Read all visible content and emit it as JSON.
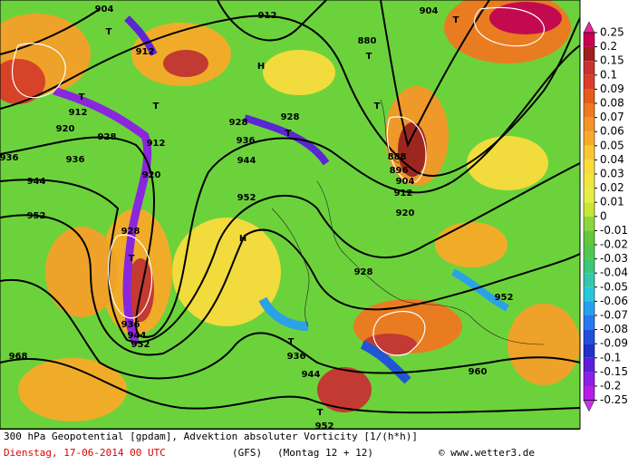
{
  "map": {
    "labels": [
      "904",
      "912",
      "T",
      "912",
      "H",
      "880",
      "T",
      "T",
      "904",
      "T",
      "912",
      "920",
      "T",
      "928",
      "T",
      "928",
      "928",
      "912",
      "936",
      "944",
      "920",
      "936",
      "936",
      "944",
      "952",
      "952",
      "920",
      "912",
      "888",
      "896",
      "904",
      "T",
      "928",
      "T",
      "H",
      "928",
      "952",
      "936",
      "944",
      "952",
      "T",
      "936",
      "944",
      "960",
      "968",
      "T",
      "952"
    ]
  },
  "colorbar": {
    "ticks": [
      0.25,
      0.2,
      0.15,
      0.1,
      0.09,
      0.08,
      0.07,
      0.06,
      0.05,
      0.04,
      0.03,
      0.02,
      0.01,
      0,
      -0.01,
      -0.02,
      -0.03,
      -0.04,
      -0.05,
      -0.06,
      -0.07,
      -0.08,
      -0.09,
      -0.1,
      -0.15,
      -0.2,
      -0.25
    ],
    "colors": [
      "#c80050",
      "#a01e1e",
      "#c83232",
      "#dc3c28",
      "#e65a1e",
      "#f07820",
      "#f59628",
      "#f8aa28",
      "#fac832",
      "#fadc3c",
      "#f0e63c",
      "#e6ee46",
      "#c8e632",
      "#8cd73c",
      "#64c83c",
      "#50c850",
      "#3cc878",
      "#32c8aa",
      "#28c8dc",
      "#28a0f0",
      "#2878f0",
      "#1e50dc",
      "#1e32c8",
      "#5a1edc",
      "#8c1ee6",
      "#b41ee6"
    ],
    "top_color": "#e6289a",
    "bottom_color": "#c832e6"
  },
  "footer": {
    "title": "300 hPa Geopotential [gpdam], Advektion absoluter Vorticity [1/(h*h)]",
    "date": "Dienstag, 17-06-2014  00 UTC",
    "model": "(GFS)",
    "run": "(Montag 12 + 12)",
    "credit": "© www.wetter3.de"
  }
}
